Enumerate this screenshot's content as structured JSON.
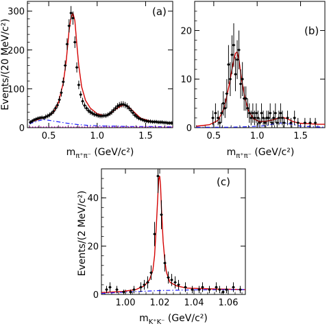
{
  "chart_data": [
    {
      "type": "scatter",
      "panel_label": "(a)",
      "xlabel": {
        "main": "m",
        "sub": "π⁺π⁻",
        "unit": "(GeV/c²)"
      },
      "ylabel": "Events/(20 MeV/c²)",
      "xlim": [
        0.28,
        1.78
      ],
      "ylim": [
        0,
        325
      ],
      "xticks": [
        0.5,
        1.0,
        1.5
      ],
      "xtick_labels": [
        "0.5",
        "1.0",
        "1.5"
      ],
      "yticks": [
        0,
        100,
        200,
        300
      ],
      "ytick_labels": [
        "0",
        "100",
        "200",
        "300"
      ],
      "series": [
        {
          "role": "data",
          "x": [
            0.31,
            0.33,
            0.35,
            0.37,
            0.39,
            0.41,
            0.43,
            0.45,
            0.47,
            0.49,
            0.51,
            0.53,
            0.55,
            0.57,
            0.59,
            0.61,
            0.63,
            0.65,
            0.67,
            0.69,
            0.71,
            0.73,
            0.75,
            0.77,
            0.79,
            0.81,
            0.83,
            0.85,
            0.87,
            0.89,
            0.91,
            0.93,
            0.95,
            0.97,
            0.99,
            1.01,
            1.03,
            1.05,
            1.07,
            1.09,
            1.11,
            1.13,
            1.15,
            1.17,
            1.19,
            1.21,
            1.23,
            1.25,
            1.27,
            1.29,
            1.31,
            1.33,
            1.35,
            1.37,
            1.39,
            1.41,
            1.43,
            1.45,
            1.47,
            1.49,
            1.51,
            1.53,
            1.55,
            1.57,
            1.59,
            1.61,
            1.63,
            1.65,
            1.67,
            1.69,
            1.71,
            1.73,
            1.75,
            1.77
          ],
          "y": [
            14,
            17,
            20,
            22,
            24,
            25,
            26,
            25,
            28,
            30,
            33,
            37,
            42,
            50,
            58,
            72,
            90,
            118,
            160,
            215,
            262,
            295,
            282,
            220,
            155,
            110,
            85,
            68,
            57,
            50,
            44,
            40,
            37,
            34,
            33,
            31,
            30,
            30,
            31,
            31,
            33,
            36,
            40,
            45,
            50,
            55,
            58,
            60,
            60,
            58,
            55,
            50,
            44,
            38,
            32,
            28,
            24,
            22,
            20,
            18,
            17,
            16,
            16,
            15,
            15,
            15,
            14,
            14,
            14,
            13,
            13,
            12,
            12,
            12
          ],
          "err": [
            5,
            5,
            5,
            5,
            5,
            5,
            5,
            5,
            6,
            6,
            6,
            6,
            7,
            7,
            8,
            9,
            10,
            11,
            13,
            15,
            17,
            18,
            17,
            15,
            13,
            11,
            9,
            9,
            8,
            7,
            7,
            7,
            6,
            6,
            6,
            6,
            6,
            6,
            6,
            6,
            6,
            6,
            7,
            7,
            7,
            8,
            8,
            8,
            8,
            8,
            8,
            7,
            7,
            7,
            6,
            6,
            5,
            5,
            5,
            5,
            5,
            5,
            5,
            5,
            5,
            5,
            5,
            5,
            5,
            5,
            5,
            5,
            5,
            5
          ]
        },
        {
          "role": "fit-total",
          "color": "#d40000",
          "x": [
            0.3,
            0.4,
            0.5,
            0.55,
            0.6,
            0.65,
            0.68,
            0.71,
            0.73,
            0.75,
            0.77,
            0.79,
            0.81,
            0.84,
            0.88,
            0.93,
            1.0,
            1.07,
            1.13,
            1.18,
            1.23,
            1.27,
            1.3,
            1.34,
            1.39,
            1.45,
            1.55,
            1.65,
            1.78
          ],
          "y": [
            13,
            22,
            31,
            40,
            64,
            115,
            170,
            250,
            283,
            295,
            275,
            215,
            160,
            105,
            70,
            50,
            36,
            31,
            34,
            45,
            54,
            58,
            57,
            50,
            38,
            24,
            17,
            14,
            12
          ]
        },
        {
          "role": "background-1",
          "color": "#1a1aff",
          "dash": "dash-dot",
          "x": [
            0.3,
            0.35,
            0.4,
            0.45,
            0.5,
            0.6,
            0.7,
            0.8,
            0.9,
            1.0,
            1.1,
            1.2,
            1.3,
            1.4,
            1.5,
            1.6,
            1.7,
            1.78
          ],
          "y": [
            10,
            14,
            18,
            21,
            19,
            15,
            11,
            8,
            6,
            5,
            4,
            4,
            3,
            3,
            3,
            3,
            2,
            2
          ]
        },
        {
          "role": "background-2",
          "color": "#c000c0",
          "dash": "dot",
          "x": [
            0.3,
            0.5,
            0.7,
            0.9,
            1.1,
            1.3,
            1.5,
            1.78
          ],
          "y": [
            2,
            2,
            2,
            2,
            2,
            2,
            2,
            2
          ]
        }
      ]
    },
    {
      "type": "scatter",
      "panel_label": "(b)",
      "xlabel": {
        "main": "m",
        "sub": "π⁺π⁻",
        "unit": "(GeV/c²)"
      },
      "ylabel": "",
      "xlim": [
        0.28,
        1.78
      ],
      "ylim": [
        0,
        26
      ],
      "xticks": [
        0.5,
        1.0,
        1.5
      ],
      "xtick_labels": [
        "0.5",
        "1.0",
        "1.5"
      ],
      "yticks": [
        0,
        10,
        20
      ],
      "ytick_labels": [
        "0",
        "10",
        "20"
      ],
      "series": [
        {
          "role": "data",
          "x": [
            0.49,
            0.52,
            0.55,
            0.57,
            0.59,
            0.61,
            0.63,
            0.65,
            0.67,
            0.69,
            0.71,
            0.73,
            0.75,
            0.77,
            0.79,
            0.81,
            0.83,
            0.85,
            0.87,
            0.89,
            0.91,
            0.93,
            0.95,
            0.97,
            0.99,
            1.01,
            1.03,
            1.05,
            1.07,
            1.09,
            1.11,
            1.13,
            1.15,
            1.17,
            1.19,
            1.21,
            1.23,
            1.25,
            1.27,
            1.29,
            1.31,
            1.35,
            1.39,
            1.43,
            1.47,
            1.55,
            1.61,
            1.67
          ],
          "y": [
            2,
            3,
            2,
            1,
            3,
            5,
            4,
            7,
            13,
            10,
            15,
            17,
            11,
            14,
            16,
            9,
            10,
            6,
            6,
            4,
            3,
            2,
            3,
            2,
            3,
            2,
            1,
            3,
            2,
            1,
            2,
            2,
            3,
            1,
            2,
            3,
            1,
            2,
            3,
            2,
            1,
            2,
            1,
            2,
            1,
            1,
            1,
            1
          ],
          "err": [
            1.5,
            2,
            1.5,
            1,
            2,
            2.5,
            2,
            3,
            4,
            3.5,
            4,
            4.5,
            3.5,
            4,
            4,
            3,
            3.5,
            2.5,
            2.5,
            2,
            2,
            1.5,
            2,
            1.5,
            2,
            1.5,
            1,
            2,
            1.5,
            1,
            1.5,
            1.5,
            2,
            1,
            1.5,
            2,
            1,
            1.5,
            2,
            1.5,
            1,
            1.5,
            1,
            1.5,
            1,
            1,
            1,
            1
          ]
        },
        {
          "role": "fit-total",
          "color": "#d40000",
          "x": [
            0.3,
            0.45,
            0.55,
            0.62,
            0.68,
            0.72,
            0.75,
            0.77,
            0.79,
            0.82,
            0.86,
            0.9,
            0.96,
            1.02,
            1.1,
            1.18,
            1.25,
            1.3,
            1.35,
            1.42,
            1.5,
            1.6,
            1.7,
            1.78
          ],
          "y": [
            0.3,
            0.6,
            1.5,
            4,
            9,
            13,
            15.3,
            15.6,
            14,
            10,
            6,
            3.5,
            1.8,
            1.3,
            1.3,
            1.6,
            2,
            2.1,
            1.8,
            1.2,
            0.9,
            0.8,
            0.7,
            0.7
          ]
        },
        {
          "role": "background-1",
          "color": "#1a1aff",
          "dash": "dash-dot",
          "x": [
            0.3,
            0.5,
            0.7,
            0.9,
            1.1,
            1.2,
            1.3,
            1.4,
            1.5,
            1.78
          ],
          "y": [
            0.1,
            0.1,
            0.1,
            0.2,
            0.4,
            0.8,
            1.0,
            0.7,
            0.3,
            0.1
          ]
        }
      ]
    },
    {
      "type": "scatter",
      "panel_label": "(c)",
      "xlabel": {
        "main": "m",
        "sub": "K⁺K⁻",
        "unit": "(GeV/c²)"
      },
      "ylabel": "Events/(2 MeV/c²)",
      "xlim": [
        0.986,
        1.07
      ],
      "ylim": [
        0,
        52
      ],
      "xticks": [
        1.0,
        1.02,
        1.04,
        1.06
      ],
      "xtick_labels": [
        "1.00",
        "1.02",
        "1.04",
        "1.06"
      ],
      "yticks": [
        0,
        20,
        40
      ],
      "ytick_labels": [
        "0",
        "20",
        "40"
      ],
      "series": [
        {
          "role": "data",
          "x": [
            0.989,
            0.991,
            0.995,
            0.999,
            1.003,
            1.005,
            1.009,
            1.011,
            1.013,
            1.015,
            1.017,
            1.019,
            1.021,
            1.023,
            1.025,
            1.027,
            1.029,
            1.031,
            1.035,
            1.039,
            1.043,
            1.045,
            1.049,
            1.053,
            1.055,
            1.057,
            1.059,
            1.063,
            1.067
          ],
          "y": [
            2,
            3,
            2,
            1,
            1,
            2,
            3,
            4,
            5,
            9,
            25,
            49,
            33,
            13,
            7,
            6,
            5,
            4,
            3,
            2,
            2,
            3,
            2,
            3,
            2,
            1,
            2,
            3,
            2
          ],
          "err": [
            1.5,
            2,
            1.5,
            1,
            1,
            1.5,
            2,
            2,
            2.5,
            3,
            5,
            7,
            6,
            3.5,
            2.5,
            2.5,
            2.5,
            2,
            2,
            1.5,
            1.5,
            2,
            1.5,
            2,
            1.5,
            1,
            1.5,
            2,
            1.5
          ]
        },
        {
          "role": "fit-total",
          "color": "#d40000",
          "x": [
            0.986,
            0.998,
            1.006,
            1.011,
            1.014,
            1.016,
            1.017,
            1.018,
            1.019,
            1.0195,
            1.02,
            1.0205,
            1.021,
            1.022,
            1.023,
            1.024,
            1.026,
            1.03,
            1.036,
            1.045,
            1.055,
            1.07
          ],
          "y": [
            0.8,
            1.2,
            2,
            3.5,
            6,
            10,
            16,
            28,
            42,
            48,
            49,
            45,
            36,
            22,
            14,
            9,
            5,
            3.5,
            2.6,
            2.4,
            2.2,
            2
          ]
        },
        {
          "role": "background-1",
          "color": "#1a1aff",
          "dash": "dash-dot",
          "x": [
            0.986,
            1.0,
            1.02,
            1.04,
            1.07
          ],
          "y": [
            0.4,
            1.0,
            1.6,
            1.9,
            2.0
          ]
        }
      ]
    }
  ]
}
